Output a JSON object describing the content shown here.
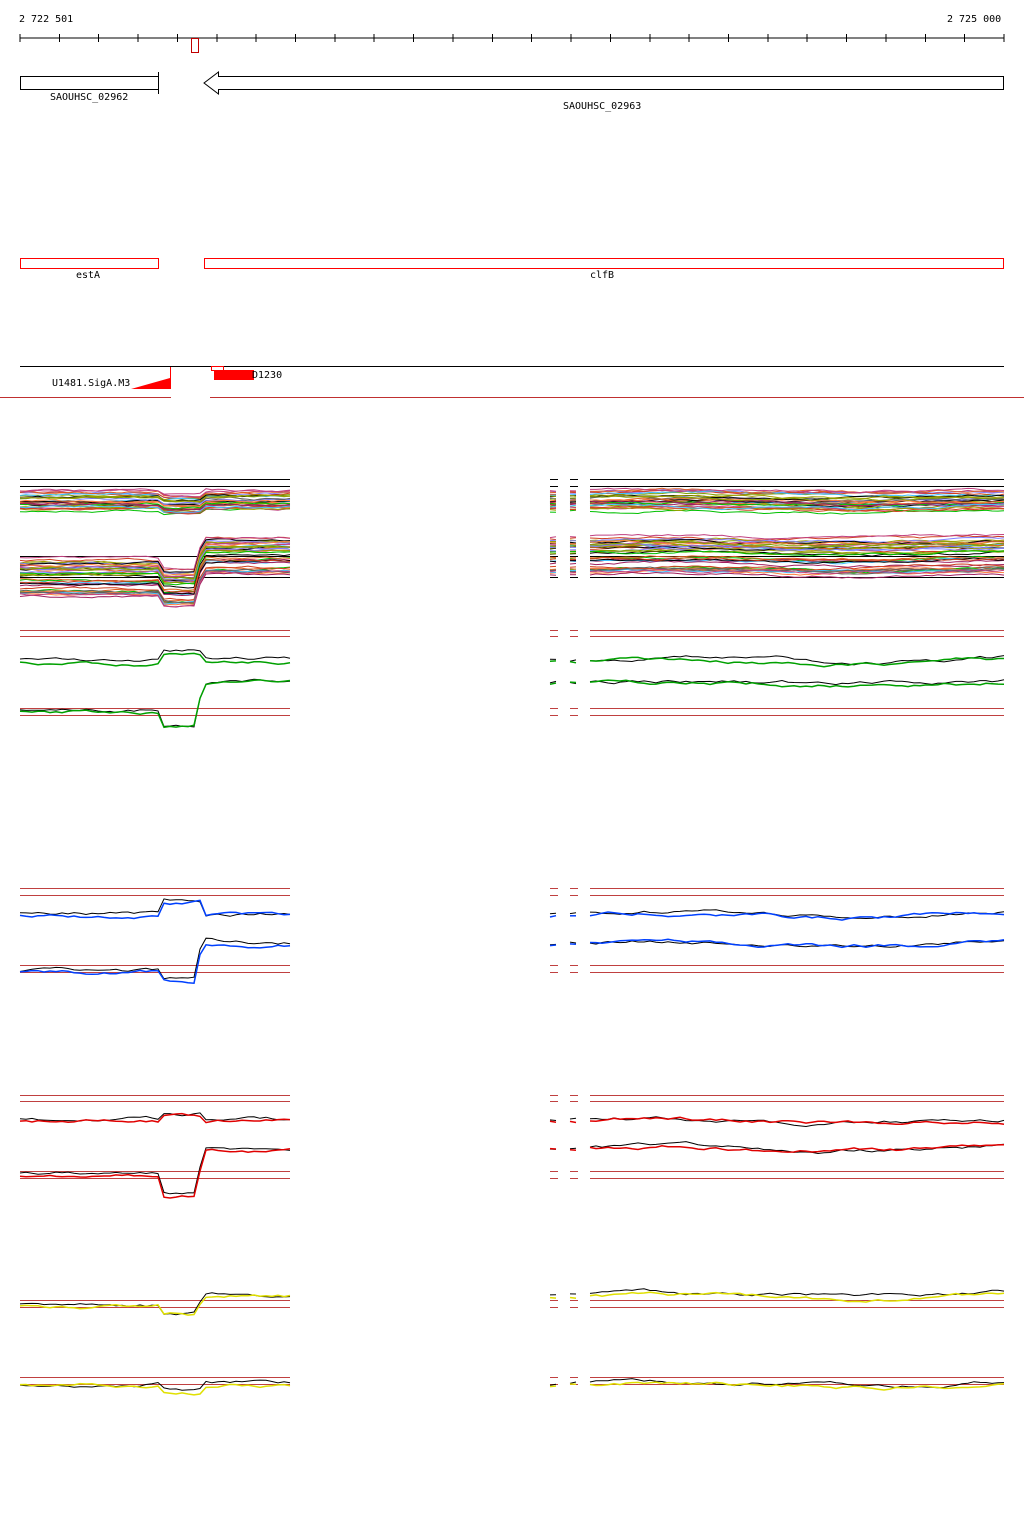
{
  "ruler": {
    "start_label": "2 722 501",
    "end_label": "2 725 000",
    "tick_count": 25
  },
  "genes": [
    {
      "name": "SAOUHSC_02962",
      "strand": "+"
    },
    {
      "name": "SAOUHSC_02963",
      "strand": "-"
    }
  ],
  "gene_names": [
    {
      "name": "estA"
    },
    {
      "name": "clfB"
    }
  ],
  "features": {
    "left_label": "U1481.SigA.M3",
    "right_label": "D1230"
  },
  "tracks": [
    {
      "name": "all-conditions",
      "colors": [
        "#000000",
        "#d04020",
        "#80a000",
        "#c04080",
        "#40c0ff",
        "#a0a000",
        "#e06020",
        "#00c000",
        "#a02060",
        "#8080ff",
        "#606060",
        "#ff8040"
      ]
    },
    {
      "name": "green-track",
      "color": "#00a000"
    },
    {
      "name": "blue-track",
      "color": "#0040ff"
    },
    {
      "name": "red-track",
      "color": "#e00000"
    },
    {
      "name": "yellow-track",
      "color": "#e0e000"
    }
  ],
  "colors": {
    "highlight": "#ff0000",
    "threshold": "#c04040"
  }
}
